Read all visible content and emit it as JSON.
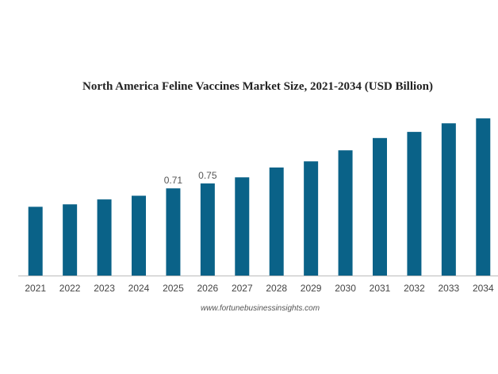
{
  "chart_data": {
    "type": "bar",
    "title": "North America Feline Vaccines Market Size, 2021-2034 (USD Billion)",
    "xlabel": "",
    "ylabel": "",
    "categories": [
      "2021",
      "2022",
      "2023",
      "2024",
      "2025",
      "2026",
      "2027",
      "2028",
      "2029",
      "2030",
      "2031",
      "2032",
      "2033",
      "2034"
    ],
    "values": [
      0.56,
      0.58,
      0.62,
      0.65,
      0.71,
      0.75,
      0.8,
      0.88,
      0.93,
      1.02,
      1.12,
      1.17,
      1.24,
      1.28
    ],
    "data_labels": [
      {
        "index": 4,
        "text": "0.71"
      },
      {
        "index": 5,
        "text": "0.75"
      }
    ],
    "ylim": [
      0,
      1.3
    ],
    "grid": false,
    "legend": "none",
    "bar_color": "#0a6288",
    "axis_color": "#bbbbbb"
  },
  "source": "www.fortunebusinessinsights.com"
}
